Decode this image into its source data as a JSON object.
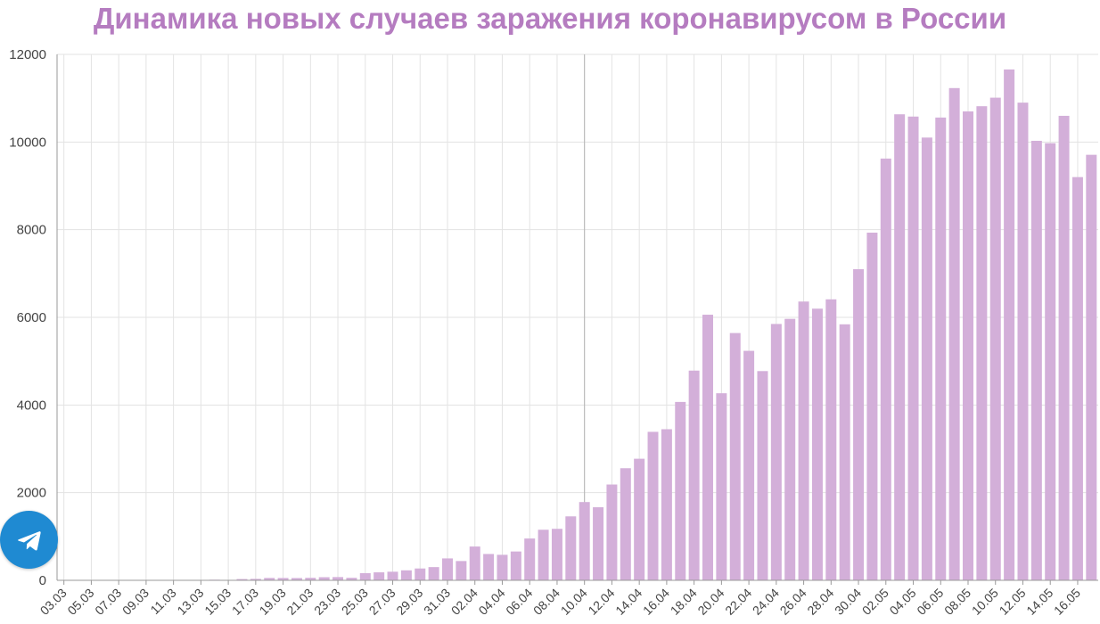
{
  "chart_data": {
    "type": "bar",
    "title": "Динамика новых случаев заражения коронавирусом в России",
    "xlabel": "",
    "ylabel": "",
    "ylim": [
      0,
      12000
    ],
    "yticks": [
      0,
      2000,
      4000,
      6000,
      8000,
      10000,
      12000
    ],
    "grid": true,
    "bar_color": "#d3afd9",
    "categories": [
      "03.03",
      "04.03",
      "05.03",
      "06.03",
      "07.03",
      "08.03",
      "09.03",
      "10.03",
      "11.03",
      "12.03",
      "13.03",
      "14.03",
      "15.03",
      "16.03",
      "17.03",
      "18.03",
      "19.03",
      "20.03",
      "21.03",
      "22.03",
      "23.03",
      "24.03",
      "25.03",
      "26.03",
      "27.03",
      "28.03",
      "29.03",
      "30.03",
      "31.03",
      "01.04",
      "02.04",
      "03.04",
      "04.04",
      "05.04",
      "06.04",
      "07.04",
      "08.04",
      "09.04",
      "10.04",
      "11.04",
      "12.04",
      "13.04",
      "14.04",
      "15.04",
      "16.04",
      "17.04",
      "18.04",
      "19.04",
      "20.04",
      "21.04",
      "22.04",
      "23.04",
      "24.04",
      "25.04",
      "26.04",
      "27.04",
      "28.04",
      "29.04",
      "30.04",
      "01.05",
      "02.05",
      "03.05",
      "04.05",
      "05.05",
      "06.05",
      "07.05",
      "08.05",
      "09.05",
      "10.05",
      "11.05",
      "12.05",
      "13.05",
      "14.05",
      "15.05",
      "16.05",
      "17.05"
    ],
    "tick_labels": [
      "03.03",
      "05.03",
      "07.03",
      "09.03",
      "11.03",
      "13.03",
      "15.03",
      "17.03",
      "19.03",
      "21.03",
      "23.03",
      "25.03",
      "27.03",
      "29.03",
      "31.03",
      "02.04",
      "04.04",
      "06.04",
      "08.04",
      "10.04",
      "12.04",
      "14.04",
      "16.04",
      "18.04",
      "20.04",
      "22.04",
      "24.04",
      "26.04",
      "28.04",
      "30.04",
      "02.05",
      "04.05",
      "06.05",
      "08.05",
      "10.05",
      "12.05",
      "14.05",
      "16.05"
    ],
    "values": [
      1,
      0,
      0,
      0,
      3,
      0,
      4,
      3,
      8,
      6,
      6,
      14,
      4,
      29,
      33,
      54,
      53,
      52,
      57,
      71,
      74,
      57,
      163,
      182,
      196,
      228,
      270,
      302,
      500,
      440,
      771,
      601,
      582,
      658,
      954,
      1154,
      1175,
      1459,
      1786,
      1667,
      2186,
      2558,
      2774,
      3388,
      3448,
      4070,
      4785,
      6060,
      4268,
      5642,
      5236,
      4774,
      5849,
      5966,
      6361,
      6198,
      6411,
      5841,
      7099,
      7933,
      9623,
      10633,
      10581,
      10102,
      10559,
      11231,
      10699,
      10817,
      11012,
      11656,
      10899,
      10028,
      9974,
      10598,
      9200,
      9709
    ]
  },
  "telegram_button": {
    "icon": "paper-plane-icon",
    "color": "#1f8ad2"
  }
}
